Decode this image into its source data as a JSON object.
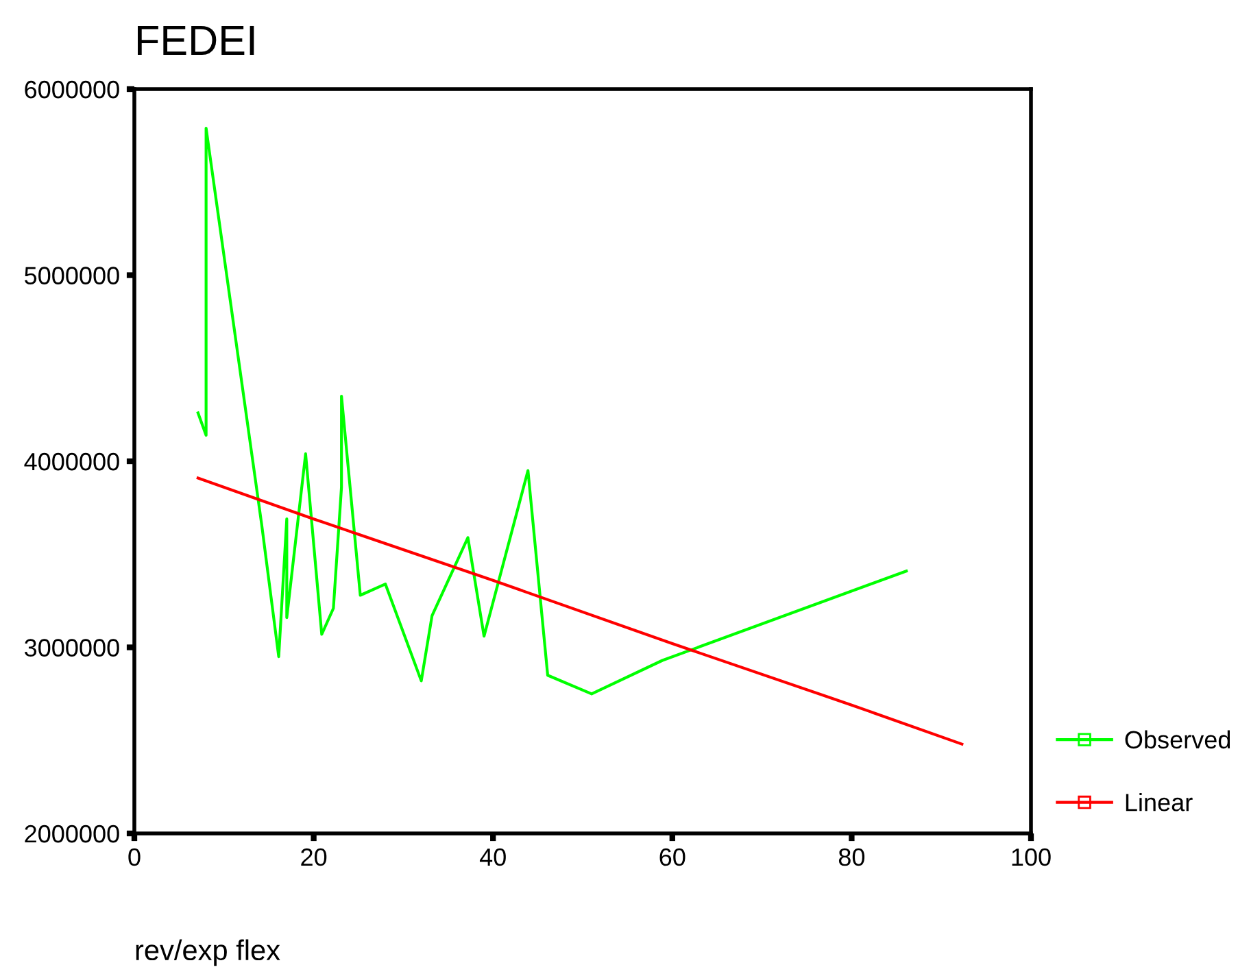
{
  "chart_data": {
    "type": "line",
    "title": "FEDEI",
    "xlabel": "rev/exp flex",
    "xlim": [
      0,
      100
    ],
    "xticks": [
      0,
      20,
      40,
      60,
      80,
      100
    ],
    "ylim": [
      2000000,
      6000000
    ],
    "yticks": [
      2000000,
      3000000,
      4000000,
      5000000,
      6000000
    ],
    "grid": false,
    "legend": "right",
    "line_style": "solid",
    "series": [
      {
        "name": "Observed",
        "color": "#00ff00",
        "x": [
          7.1,
          8.0,
          8.0,
          14.2,
          16.1,
          17.0,
          17.0,
          19.1,
          20.9,
          22.2,
          23.1,
          23.1,
          25.2,
          28.0,
          32.0,
          33.2,
          37.2,
          39.0,
          43.9,
          46.1,
          51.0,
          58.9,
          86.1
        ],
        "values": [
          4260000,
          4140000,
          5790000,
          3660000,
          2950000,
          3690000,
          3160000,
          4040000,
          3070000,
          3210000,
          3860000,
          4350000,
          3280000,
          3340000,
          2820000,
          3170000,
          3590000,
          3060000,
          3950000,
          2850000,
          2750000,
          2930000,
          3410000
        ]
      },
      {
        "name": "Linear",
        "color": "#ff0000",
        "x": [
          7.1,
          20,
          40,
          60,
          80,
          92.3
        ],
        "values": [
          3910000,
          3690000,
          3360000,
          3020000,
          2690000,
          2480000
        ]
      }
    ]
  }
}
